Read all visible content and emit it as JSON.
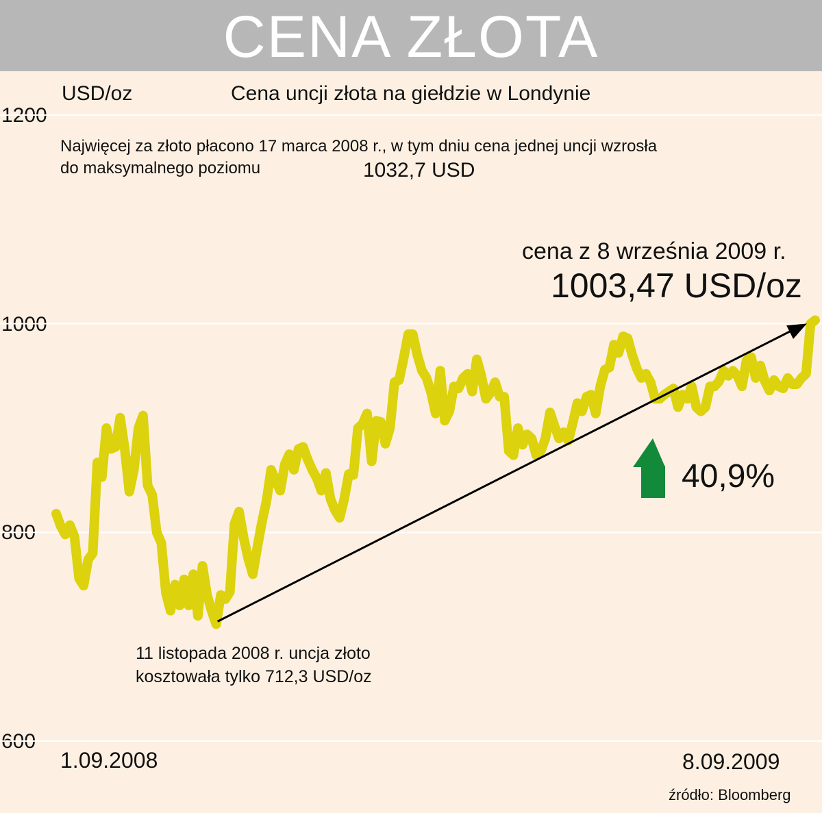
{
  "header": {
    "title": "CENA ZŁOTA"
  },
  "chart_data": {
    "type": "line",
    "title": "Cena uncji złota na giełdzie w Londynie",
    "ylabel": "USD/oz",
    "ylim": [
      600,
      1200
    ],
    "yticks": [
      600,
      800,
      1000,
      1200
    ],
    "ytick_labels": [
      "600",
      "800",
      "1000",
      "1200"
    ],
    "x_start_label": "1.09.2008",
    "x_end_label": "8.09.2009",
    "grid": true,
    "color": "#dcd20e",
    "series": [
      {
        "values": [
          818,
          806,
          798,
          807,
          796,
          756,
          749,
          774,
          780,
          867,
          853,
          900,
          880,
          882,
          910,
          880,
          839,
          860,
          900,
          912,
          845,
          836,
          800,
          790,
          742,
          725,
          750,
          730,
          755,
          730,
          760,
          720,
          768,
          740,
          725,
          712,
          740,
          736,
          743,
          808,
          820,
          795,
          775,
          760,
          786,
          810,
          830,
          860,
          850,
          840,
          865,
          875,
          860,
          880,
          882,
          870,
          860,
          852,
          840,
          857,
          832,
          821,
          814,
          832,
          856,
          855,
          900,
          904,
          914,
          868,
          907,
          906,
          885,
          900,
          944,
          946,
          967,
          990,
          990,
          970,
          955,
          948,
          934,
          914,
          955,
          907,
          916,
          940,
          938,
          948,
          952,
          935,
          966,
          950,
          928,
          934,
          944,
          930,
          930,
          878,
          874,
          900,
          884,
          894,
          890,
          874,
          878,
          890,
          915,
          902,
          890,
          896,
          888,
          905,
          924,
          916,
          930,
          932,
          914,
          940,
          956,
          958,
          980,
          972,
          988,
          986,
          970,
          957,
          948,
          952,
          944,
          928,
          928,
          932,
          935,
          938,
          920,
          932,
          928,
          940,
          920,
          916,
          920,
          940,
          940,
          945,
          955,
          950,
          955,
          950,
          940,
          965,
          968,
          948,
          960,
          945,
          936,
          946,
          940,
          938,
          948,
          942,
          942,
          948,
          952,
          1000,
          1003.47
        ]
      }
    ],
    "annotations": {
      "max_note": "Najwięcej za złoto płacono 17 marca 2008 r., w tym dniu cena jednej uncji wzrosła do maksymalnego poziomu",
      "max_value": "1032,7 USD",
      "last_label": "cena z 8 września 2009 r.",
      "last_value": "1003,47 USD/oz",
      "min_note_line1": "11 listopada 2008 r. uncja złoto",
      "min_note_line2": "kosztowała tylko 712,3 USD/oz",
      "change": "40,9%",
      "change_color": "#138a3a"
    },
    "source": "źródło: Bloomberg"
  }
}
